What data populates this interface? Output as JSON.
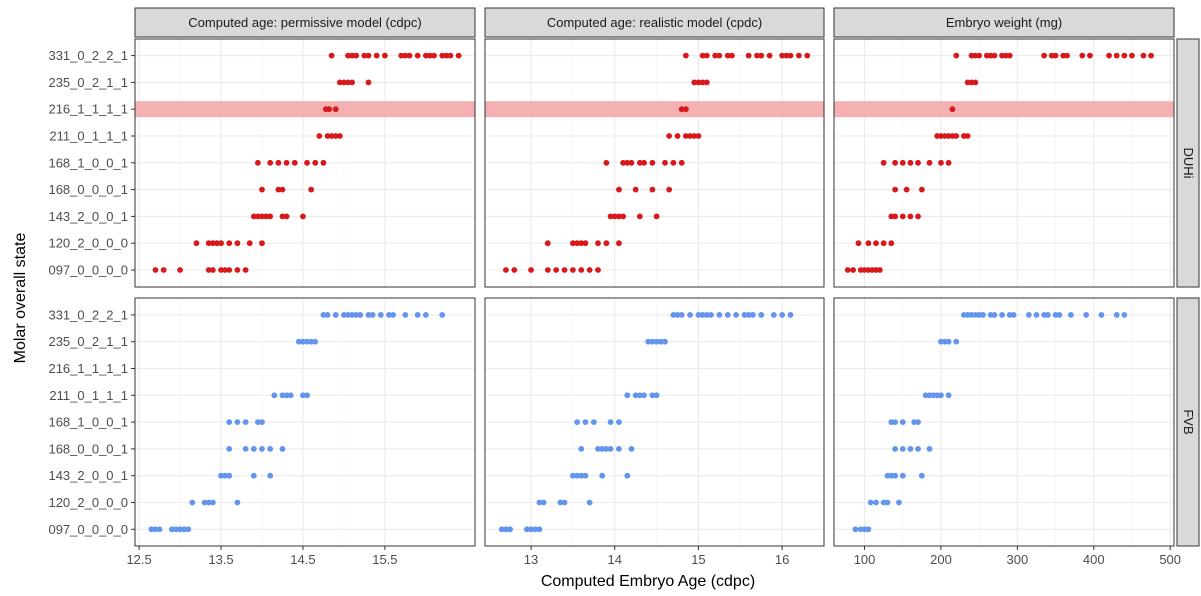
{
  "chart_data": {
    "type": "scatter",
    "xlabel": "Computed Embryo Age (cdpc)",
    "ylabel": "Molar overall state",
    "categories": [
      "097_0_0_0_0",
      "120_2_0_0_0",
      "143_2_0_0_1",
      "168_0_0_0_1",
      "168_1_0_0_1",
      "211_0_1_1_1",
      "216_1_1_1_1",
      "235_0_2_1_1",
      "331_0_2_2_1"
    ],
    "highlight_category": "216_1_1_1_1",
    "grid": true,
    "panels": [
      {
        "title": "Computed age: permissive model (cdpc)",
        "xlim": [
          12.45,
          16.6
        ],
        "xticks": [
          12.5,
          13.5,
          14.5,
          15.5
        ],
        "xtick_labels": [
          "12.5",
          "13.5",
          "14.5",
          "15.5"
        ]
      },
      {
        "title": "Computed age: realistic model (cpdc)",
        "xlim": [
          12.45,
          16.5
        ],
        "xticks": [
          13,
          14,
          15,
          16
        ],
        "xtick_labels": [
          "13",
          "14",
          "15",
          "16"
        ]
      },
      {
        "title": "Embryo weight (mg)",
        "xlim": [
          60,
          505
        ],
        "xticks": [
          100,
          200,
          300,
          400,
          500
        ],
        "xtick_labels": [
          "100",
          "200",
          "300",
          "400",
          "500"
        ]
      }
    ],
    "series": [
      {
        "name": "DUHi",
        "color": "#d7191c",
        "points": [
          [
            [
              "097_0_0_0_0",
              [
                12.7,
                12.8,
                13.0,
                13.35,
                13.4,
                13.5,
                13.55,
                13.6,
                13.7,
                13.8
              ]
            ],
            [
              "120_2_0_0_0",
              [
                13.2,
                13.35,
                13.4,
                13.45,
                13.5,
                13.6,
                13.7,
                13.85,
                14.0
              ]
            ],
            [
              "143_2_0_0_1",
              [
                13.9,
                13.95,
                14.0,
                14.05,
                14.1,
                14.25,
                14.3,
                14.5
              ]
            ],
            [
              "168_0_0_0_1",
              [
                14.0,
                14.2,
                14.25,
                14.6
              ]
            ],
            [
              "168_1_0_0_1",
              [
                13.95,
                14.1,
                14.2,
                14.3,
                14.4,
                14.55,
                14.65,
                14.75
              ]
            ],
            [
              "211_0_1_1_1",
              [
                14.7,
                14.8,
                14.85,
                14.9,
                14.95
              ]
            ],
            [
              "216_1_1_1_1",
              [
                14.78,
                14.82,
                14.9
              ]
            ],
            [
              "235_0_2_1_1",
              [
                14.95,
                15.0,
                15.05,
                15.1,
                15.3
              ]
            ],
            [
              "331_0_2_2_1",
              [
                14.85,
                15.05,
                15.1,
                15.15,
                15.25,
                15.3,
                15.4,
                15.5,
                15.7,
                15.75,
                15.8,
                15.9,
                16.0,
                16.05,
                16.1,
                16.2,
                16.25,
                16.3,
                16.4
              ]
            ]
          ],
          [
            [
              "097_0_0_0_0",
              [
                12.7,
                12.8,
                13.0,
                13.2,
                13.3,
                13.4,
                13.5,
                13.6,
                13.7,
                13.8
              ]
            ],
            [
              "120_2_0_0_0",
              [
                13.2,
                13.5,
                13.55,
                13.6,
                13.65,
                13.8,
                13.9,
                14.05
              ]
            ],
            [
              "143_2_0_0_1",
              [
                13.95,
                14.0,
                14.05,
                14.1,
                14.3,
                14.5
              ]
            ],
            [
              "168_0_0_0_1",
              [
                14.05,
                14.25,
                14.45,
                14.65
              ]
            ],
            [
              "168_1_0_0_1",
              [
                13.9,
                14.1,
                14.15,
                14.2,
                14.3,
                14.35,
                14.45,
                14.6,
                14.7,
                14.8
              ]
            ],
            [
              "211_0_1_1_1",
              [
                14.65,
                14.75,
                14.85,
                14.9,
                14.95,
                15.0
              ]
            ],
            [
              "216_1_1_1_1",
              [
                14.8,
                14.85
              ]
            ],
            [
              "235_0_2_1_1",
              [
                14.95,
                15.0,
                15.05,
                15.1
              ]
            ],
            [
              "331_0_2_2_1",
              [
                14.85,
                15.05,
                15.1,
                15.2,
                15.25,
                15.35,
                15.4,
                15.6,
                15.7,
                15.75,
                15.85,
                16.0,
                16.05,
                16.1,
                16.2,
                16.3
              ]
            ]
          ],
          [
            [
              "097_0_0_0_0",
              [
                78,
                85,
                95,
                100,
                105,
                110,
                115,
                120
              ]
            ],
            [
              "120_2_0_0_0",
              [
                92,
                105,
                115,
                125,
                135
              ]
            ],
            [
              "143_2_0_0_1",
              [
                135,
                140,
                150,
                160,
                170
              ]
            ],
            [
              "168_0_0_0_1",
              [
                140,
                155,
                175
              ]
            ],
            [
              "168_1_0_0_1",
              [
                125,
                140,
                150,
                160,
                170,
                185,
                200,
                210
              ]
            ],
            [
              "211_0_1_1_1",
              [
                195,
                200,
                205,
                210,
                215,
                220,
                230,
                235
              ]
            ],
            [
              "216_1_1_1_1",
              [
                215
              ]
            ],
            [
              "235_0_2_1_1",
              [
                235,
                240,
                245
              ]
            ],
            [
              "331_0_2_2_1",
              [
                220,
                240,
                245,
                250,
                260,
                265,
                270,
                280,
                285,
                290,
                335,
                345,
                350,
                360,
                365,
                385,
                395,
                420,
                430,
                440,
                450,
                465,
                475
              ]
            ]
          ]
        ]
      },
      {
        "name": "FVB",
        "color": "#6495ed",
        "points": [
          [
            [
              "097_0_0_0_0",
              [
                12.65,
                12.7,
                12.75,
                12.9,
                12.95,
                13.0,
                13.05,
                13.1
              ]
            ],
            [
              "120_2_0_0_0",
              [
                13.15,
                13.3,
                13.35,
                13.4,
                13.7
              ]
            ],
            [
              "143_2_0_0_1",
              [
                13.5,
                13.55,
                13.6,
                13.9,
                14.1
              ]
            ],
            [
              "168_0_0_0_1",
              [
                13.6,
                13.8,
                13.9,
                14.0,
                14.1,
                14.25
              ]
            ],
            [
              "168_1_0_0_1",
              [
                13.6,
                13.7,
                13.8,
                13.95,
                14.0
              ]
            ],
            [
              "211_0_1_1_1",
              [
                14.15,
                14.25,
                14.3,
                14.35,
                14.5,
                14.55
              ]
            ],
            [
              "235_0_2_1_1",
              [
                14.45,
                14.5,
                14.55,
                14.6,
                14.65
              ]
            ],
            [
              "331_0_2_2_1",
              [
                14.75,
                14.8,
                14.9,
                15.0,
                15.05,
                15.1,
                15.15,
                15.2,
                15.3,
                15.35,
                15.45,
                15.55,
                15.6,
                15.75,
                15.9,
                16.0,
                16.2
              ]
            ]
          ],
          [
            [
              "097_0_0_0_0",
              [
                12.65,
                12.7,
                12.75,
                12.95,
                13.0,
                13.05,
                13.1
              ]
            ],
            [
              "120_2_0_0_0",
              [
                13.1,
                13.15,
                13.35,
                13.4,
                13.7
              ]
            ],
            [
              "143_2_0_0_1",
              [
                13.5,
                13.55,
                13.6,
                13.65,
                13.85,
                14.15
              ]
            ],
            [
              "168_0_0_0_1",
              [
                13.6,
                13.8,
                13.85,
                13.9,
                13.95,
                14.05,
                14.2
              ]
            ],
            [
              "168_1_0_0_1",
              [
                13.55,
                13.65,
                13.75,
                13.95,
                14.05
              ]
            ],
            [
              "211_0_1_1_1",
              [
                14.15,
                14.25,
                14.3,
                14.35,
                14.45,
                14.5
              ]
            ],
            [
              "235_0_2_1_1",
              [
                14.4,
                14.45,
                14.5,
                14.55,
                14.6
              ]
            ],
            [
              "331_0_2_2_1",
              [
                14.7,
                14.75,
                14.8,
                14.9,
                15.0,
                15.05,
                15.1,
                15.15,
                15.25,
                15.35,
                15.45,
                15.55,
                15.6,
                15.65,
                15.75,
                15.9,
                16.0,
                16.1
              ]
            ]
          ],
          [
            [
              "097_0_0_0_0",
              [
                88,
                95,
                100,
                105
              ]
            ],
            [
              "120_2_0_0_0",
              [
                108,
                115,
                125,
                130,
                145
              ]
            ],
            [
              "143_2_0_0_1",
              [
                130,
                135,
                140,
                150,
                175
              ]
            ],
            [
              "168_0_0_0_1",
              [
                140,
                150,
                160,
                170,
                185
              ]
            ],
            [
              "168_1_0_0_1",
              [
                135,
                140,
                150,
                165,
                170
              ]
            ],
            [
              "211_0_1_1_1",
              [
                180,
                185,
                190,
                195,
                200,
                210
              ]
            ],
            [
              "235_0_2_1_1",
              [
                200,
                205,
                210,
                220
              ]
            ],
            [
              "331_0_2_2_1",
              [
                230,
                235,
                240,
                245,
                250,
                255,
                265,
                270,
                280,
                290,
                295,
                315,
                325,
                335,
                340,
                350,
                355,
                370,
                390,
                410,
                430,
                440
              ]
            ]
          ]
        ]
      }
    ]
  }
}
